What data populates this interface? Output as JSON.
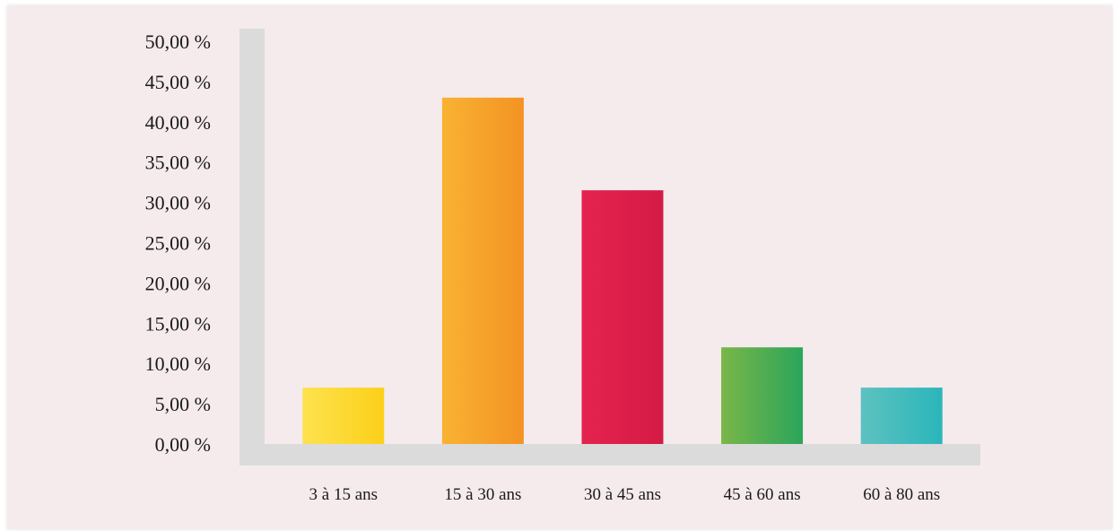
{
  "chart_data": {
    "type": "bar",
    "title": "",
    "xlabel": "",
    "ylabel": "",
    "categories": [
      "3 à 15 ans",
      "15 à 30 ans",
      "30 à 45 ans",
      "45 à 60 ans",
      "60 à 80 ans"
    ],
    "values": [
      7.0,
      43.0,
      31.5,
      12.0,
      7.0
    ],
    "ylim": [
      0,
      50
    ],
    "yticks": [
      0,
      5,
      10,
      15,
      20,
      25,
      30,
      35,
      40,
      45,
      50
    ],
    "ytick_labels": [
      "0,00 %",
      "5,00 %",
      "10,00 %",
      "15,00 %",
      "20,00 %",
      "25,00 %",
      "30,00 %",
      "35,00 %",
      "40,00 %",
      "45,00 %",
      "50,00 %"
    ],
    "grid": false,
    "legend": "none",
    "bar_colors": [
      [
        "#fde24f",
        "#fcd019"
      ],
      [
        "#f9b233",
        "#f39323"
      ],
      [
        "#e5234f",
        "#d41b45"
      ],
      [
        "#7ab648",
        "#2aa55b"
      ],
      [
        "#5ec1c0",
        "#2ab6ba"
      ]
    ],
    "axis_color": "#dbdbdb"
  }
}
